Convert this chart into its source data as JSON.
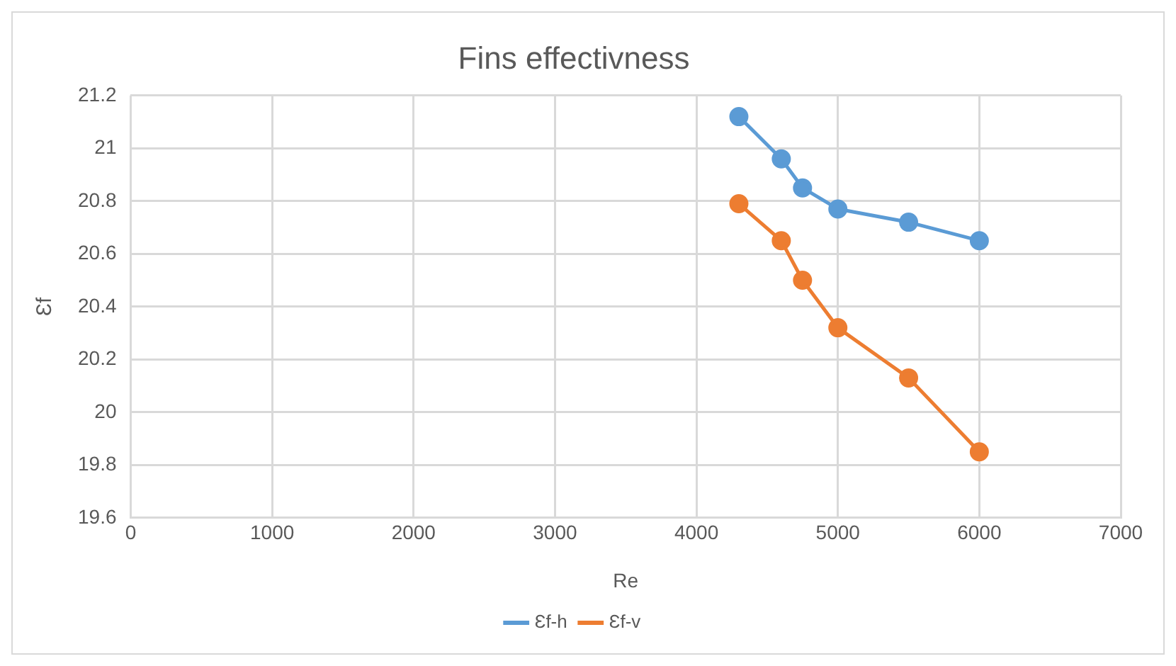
{
  "chart_data": {
    "type": "line",
    "title": "Fins effectivness",
    "xlabel": "Re",
    "ylabel": "Ɛf",
    "xlim": [
      0,
      7000
    ],
    "xticks": [
      0,
      1000,
      2000,
      3000,
      4000,
      5000,
      6000,
      7000
    ],
    "ylim": [
      19.6,
      21.2
    ],
    "yticks": [
      19.6,
      19.8,
      20,
      20.2,
      20.4,
      20.6,
      20.8,
      21,
      21.2
    ],
    "grid": true,
    "legend": "bottom",
    "marker": "circle",
    "series": [
      {
        "name": "Ɛf-h",
        "color": "#5b9bd5",
        "x": [
          4300,
          4600,
          4750,
          5000,
          5500,
          6000
        ],
        "values": [
          21.12,
          20.96,
          20.85,
          20.77,
          20.72,
          20.65
        ]
      },
      {
        "name": "Ɛf-v",
        "color": "#ed7d31",
        "x": [
          4300,
          4600,
          4750,
          5000,
          5500,
          6000
        ],
        "values": [
          20.79,
          20.65,
          20.5,
          20.32,
          20.13,
          19.85
        ]
      }
    ]
  }
}
